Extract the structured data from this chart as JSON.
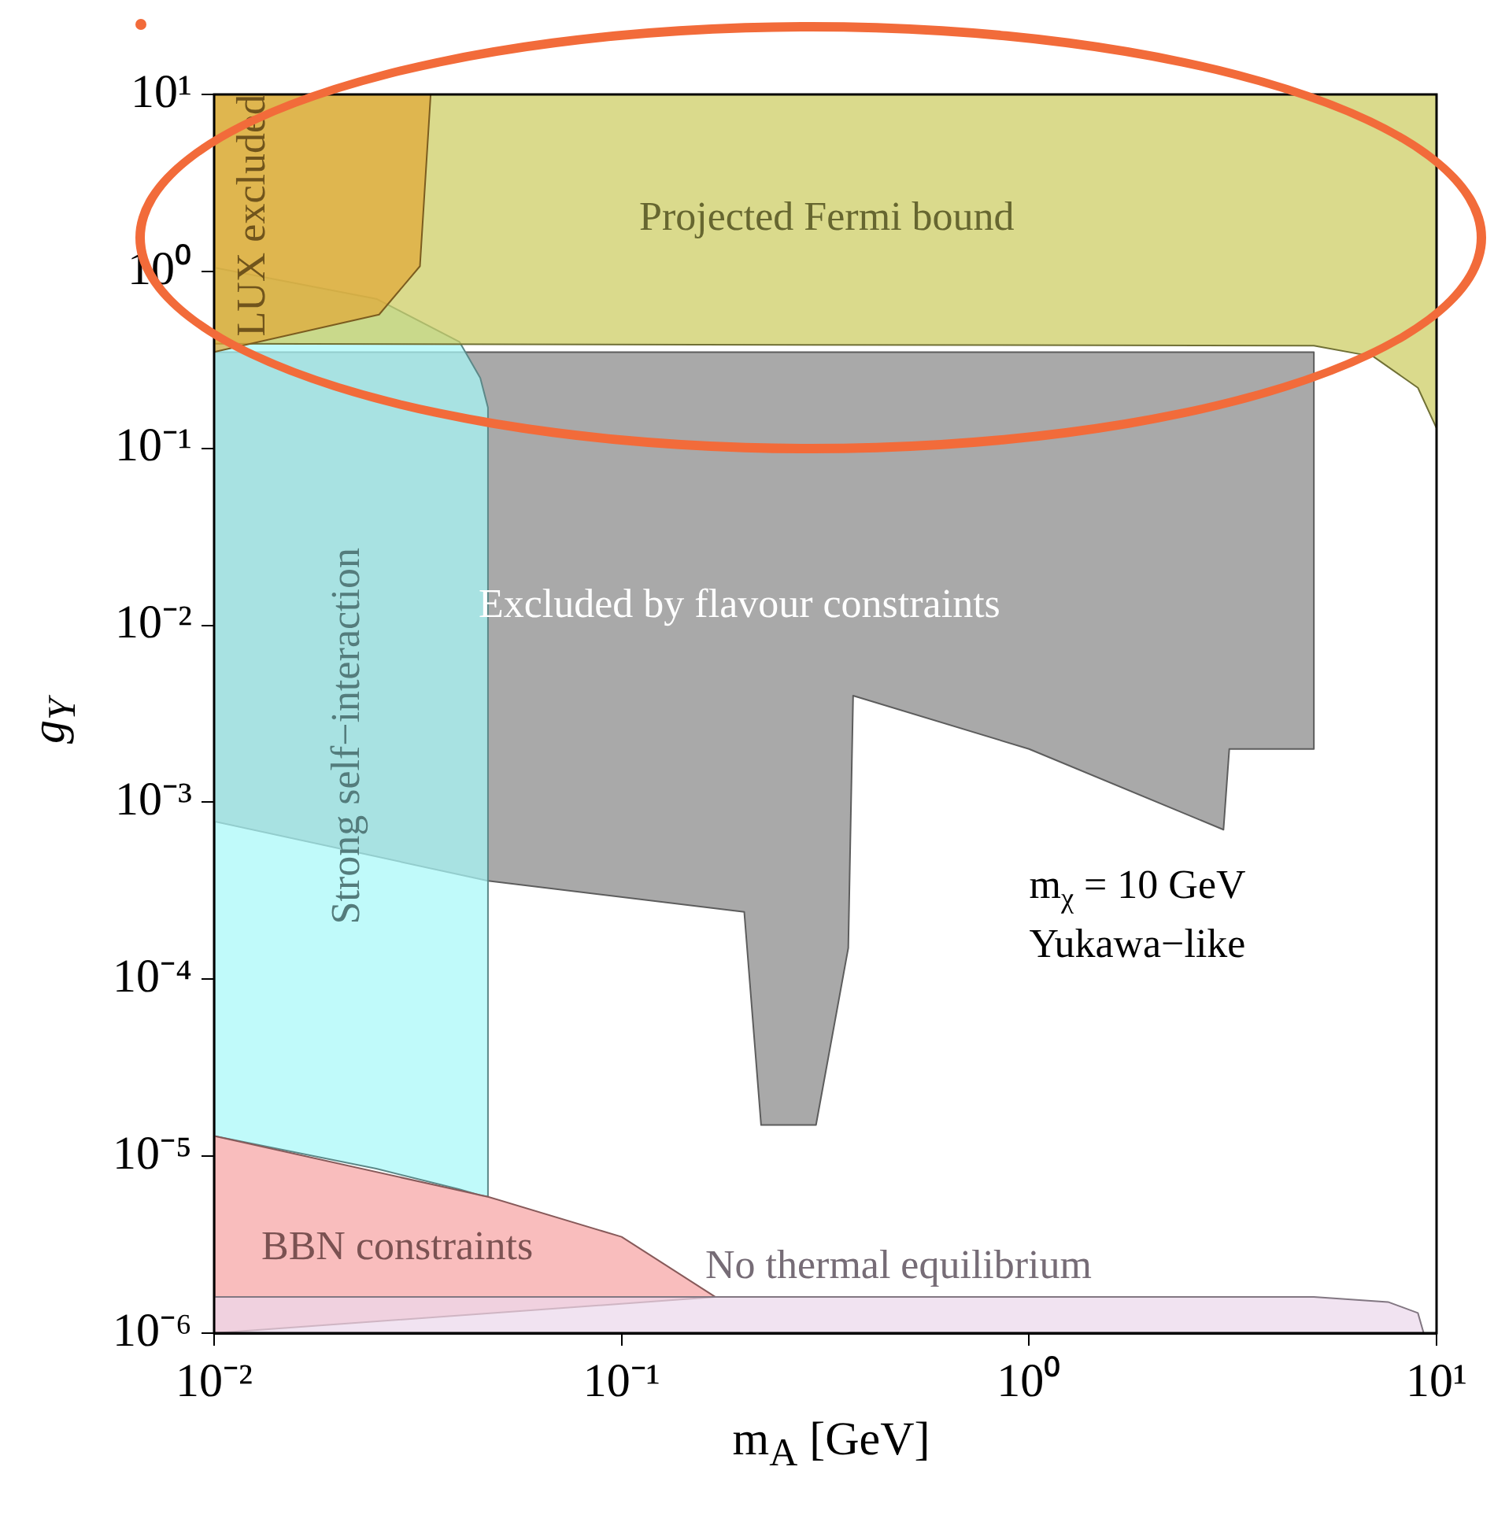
{
  "chart_data": {
    "type": "area",
    "xlabel": "m$_{A}$ [GeV]",
    "ylabel": "g$_{Y}$",
    "log": "xy",
    "grid": false,
    "legend": false,
    "xlim": [
      0.01,
      10
    ],
    "ylim": [
      1e-06,
      10
    ],
    "xticks": [
      {
        "value": 0.01,
        "label": "10⁻²"
      },
      {
        "value": 0.1,
        "label": "10⁻¹"
      },
      {
        "value": 1,
        "label": "10⁰"
      },
      {
        "value": 10,
        "label": "10¹"
      }
    ],
    "yticks": [
      {
        "value": 1e-06,
        "label": "10⁻⁶"
      },
      {
        "value": 1e-05,
        "label": "10⁻⁵"
      },
      {
        "value": 0.0001,
        "label": "10⁻⁴"
      },
      {
        "value": 0.001,
        "label": "10⁻³"
      },
      {
        "value": 0.01,
        "label": "10⁻²"
      },
      {
        "value": 0.1,
        "label": "10⁻¹"
      },
      {
        "value": 1,
        "label": "10⁰"
      },
      {
        "value": 10,
        "label": "10¹"
      }
    ],
    "series": [
      {
        "name": "Excluded by flavour constraints",
        "color": "#a9a9a9",
        "x": [
          0.01,
          0.047,
          0.2,
          0.22,
          0.3,
          0.36,
          0.37,
          1,
          3,
          3.1,
          5,
          5,
          0.01
        ],
        "values": [
          0.00078,
          0.00036,
          0.00024,
          1.5e-05,
          1.5e-05,
          0.00015,
          0.004,
          0.002,
          0.0007,
          0.002,
          0.002,
          0.35,
          0.35
        ]
      },
      {
        "name": "Strong self−interaction",
        "color": "#a8f8f8",
        "x": [
          0.01,
          0.025,
          0.04,
          0.045,
          0.047,
          0.047,
          0.045,
          0.04,
          0.025,
          0.01
        ],
        "values": [
          1.3e-05,
          8.5e-06,
          6.5e-06,
          6e-06,
          5.9e-06,
          0.17,
          0.25,
          0.4,
          0.7,
          1.05
        ]
      },
      {
        "name": "BBN constraints",
        "color": "#f6a3a3",
        "x": [
          0.01,
          0.047,
          0.1,
          0.17,
          0.01
        ],
        "values": [
          1.3e-05,
          5.9e-06,
          3.5e-06,
          1.6e-06,
          1e-06
        ]
      },
      {
        "name": "No thermal equilibrium",
        "color": "#ecd8ec",
        "x": [
          0.01,
          1,
          5,
          7.6,
          9,
          9.3,
          0.01
        ],
        "values": [
          1.6e-06,
          1.6e-06,
          1.6e-06,
          1.5e-06,
          1.3e-06,
          1e-06,
          1e-06
        ]
      },
      {
        "name": "Projected Fermi bound",
        "color": "#cccc60",
        "x": [
          0.01,
          5,
          7,
          9,
          10,
          10,
          0.01
        ],
        "values": [
          0.39,
          0.38,
          0.33,
          0.22,
          0.13,
          10,
          10
        ]
      },
      {
        "name": "LUX excluded",
        "color": "#e0a838",
        "x": [
          0.01,
          0.0254,
          0.032,
          0.034,
          0.01
        ],
        "values": [
          0.35,
          0.57,
          1.07,
          10,
          10
        ]
      }
    ],
    "annotations": [
      "m$_{χ}$ = 10 GeV",
      "Yukawa−like"
    ]
  }
}
